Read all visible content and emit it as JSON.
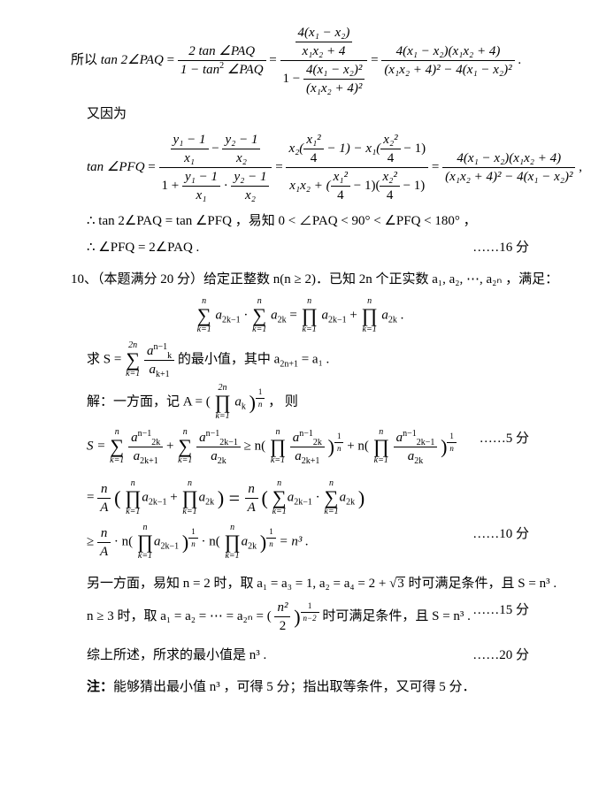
{
  "eq1_prefix": "所以 ",
  "eq1_lhs": "tan 2∠PAQ",
  "eq1_num1": "2 tan ∠PAQ",
  "eq1_den1_a": "1 − tan",
  "eq1_den1_b": " ∠PAQ",
  "eq1_num2_num": "4(x₁ − x₂)",
  "eq1_num2_den": "x₁x₂ + 4",
  "eq1_den2_a": "1 − ",
  "eq1_den2_num": "4(x₁ − x₂)²",
  "eq1_den2_den": "(x₁x₂ + 4)²",
  "eq1_num3": "4(x₁ − x₂)(x₁x₂ + 4)",
  "eq1_den3": "(x₁x₂ + 4)² − 4(x₁ − x₂)²",
  "eq1_tail": " .",
  "line2": "又因为",
  "eq2_lhs": "tan ∠PFQ",
  "eq2_num1a_num": "y₁ − 1",
  "eq2_num1a_den": "x₁",
  "eq2_minus": " − ",
  "eq2_num1b_num": "y₂ − 1",
  "eq2_num1b_den": "x₂",
  "eq2_den1a": "1 + ",
  "eq2_den1b_num": "y₁ − 1",
  "eq2_den1b_den": "x₁",
  "eq2_dot": " · ",
  "eq2_den1c_num": "y₂ − 1",
  "eq2_den1c_den": "x₂",
  "eq2_num2a": "x₂(",
  "eq2_x1sq4_num": "x₁²",
  "eq2_four": "4",
  "eq2_m1": " − 1) − x₁(",
  "eq2_x2sq4_num": "x₂²",
  "eq2_m1b": " − 1)",
  "eq2_den2a": "x₁x₂ + (",
  "eq2_m1c": " − 1)(",
  "eq2_num3": "4(x₁ − x₂)(x₁x₂ + 4)",
  "eq2_den3": "(x₁x₂ + 4)² − 4(x₁ − x₂)²",
  "eq2_tail": " ,",
  "line3a": "∴ tan 2∠PAQ = tan ∠PFQ ，易知 0 < ∠PAQ < 90° < ∠PFQ < 180° ，",
  "line3b_pre": "∴  ∠PFQ = 2∠PAQ .",
  "line3b_score": "……16 分",
  "line4": "10、（本题满分 20 分）给定正整数 n(n ≥ 2)．已知 2n 个正实数 a₁, a₂, ⋯, a₂ₙ ，满足：",
  "eq3_sum1_u": "n",
  "eq3_sum1_l": "k=1",
  "eq3_a2km1": "a",
  "eq3_sub2km1": "2k−1",
  "eq3_cdot": " · ",
  "eq3_a2k": "a",
  "eq3_sub2k": "2k",
  "eq3_eq": " = ",
  "eq3_plus": " + ",
  "eq3_tail": " .",
  "line5a": "求 S = ",
  "line5_sum_u": "2n",
  "line5_sum_l": "k=1",
  "line5_frac_num_a": "a",
  "line5_frac_num_sup": "n−1",
  "line5_frac_num_sub": "k",
  "line5_frac_den_a": "a",
  "line5_frac_den_sub": "k+1",
  "line5b": " 的最小值，其中 a",
  "line5b_sub": "2n+1",
  "line5b_tail": " = a₁ .",
  "line6a": "解：一方面，记 A = (",
  "line6_prod_u": "2n",
  "line6_prod_l": "k=1",
  "line6_ak": "a",
  "line6_ak_sub": "k",
  "line6_exp_num": "1",
  "line6_exp_den": "n",
  "line6b": " ，  则",
  "line7a": "S = ",
  "line7_sum_u": "n",
  "line7_sum_l": "k=1",
  "line7_ge": " ≥ n(",
  "line7_plus": " + n(",
  "line7_score": "……5 分",
  "line8_pre": "= ",
  "line8_nA_num": "n",
  "line8_nA_den": "A",
  "line8_open": "(",
  "line8_plus": " + ",
  "line8_close_eq": ") = ",
  "line8_close": " )",
  "line9a": "≥ ",
  "line9_cdot_n": " · n(",
  "line9_cdot": " · n(",
  "line9_eq_n3": " = n³ .",
  "line9_score": "……10 分",
  "line10": "另一方面，易知 n = 2 时，取 a₁ = a₃ = 1, a₂ = a₄ = 2 + ",
  "line10_sqrt": "3",
  "line10b": " 时可满足条件，且 S = n³ .",
  "line11a": "n ≥ 3 时，取 a₁ = a₂ = ⋯ = a₂ₙ = (",
  "line11_frac_num": "n²",
  "line11_frac_den": "2",
  "line11_exp_num": "1",
  "line11_exp_den": "n−2",
  "line11b": " 时可满足条件，且 S = n³ .",
  "line11_score": "……15 分",
  "line12a": "综上所述，所求的最小值是 n³ .",
  "line12_score": "……20 分",
  "line13_bold": "注：",
  "line13": "能够猜出最小值 n³ ，可得 5 分；指出取等条件，又可得 5 分．"
}
